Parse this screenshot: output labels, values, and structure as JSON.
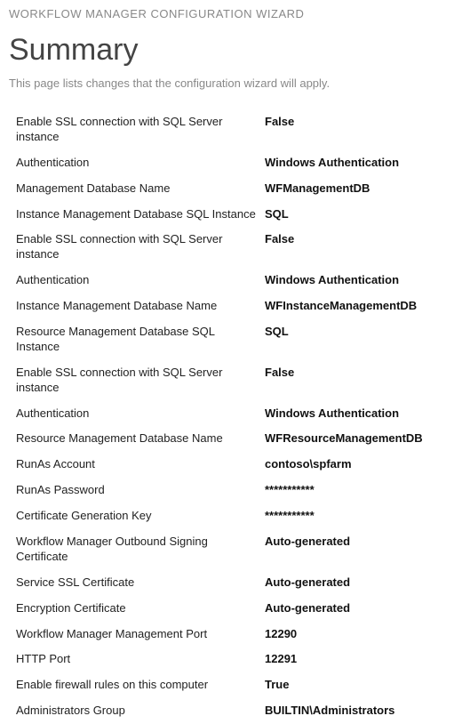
{
  "wizard_header": "WORKFLOW MANAGER CONFIGURATION WIZARD",
  "page_title": "Summary",
  "page_description": "This page lists changes that the configuration wizard will apply.",
  "settings": [
    {
      "label": "Enable SSL connection with SQL Server instance",
      "value": "False"
    },
    {
      "label": "Authentication",
      "value": "Windows Authentication"
    },
    {
      "label": "Management Database Name",
      "value": "WFManagementDB"
    },
    {
      "label": "Instance Management Database SQL Instance",
      "value": "SQL"
    },
    {
      "label": "Enable SSL connection with SQL Server instance",
      "value": "False"
    },
    {
      "label": "Authentication",
      "value": "Windows Authentication"
    },
    {
      "label": "Instance Management Database Name",
      "value": "WFInstanceManagementDB"
    },
    {
      "label": "Resource Management Database SQL Instance",
      "value": "SQL"
    },
    {
      "label": "Enable SSL connection with SQL Server instance",
      "value": "False"
    },
    {
      "label": "Authentication",
      "value": "Windows Authentication"
    },
    {
      "label": "Resource Management Database Name",
      "value": "WFResourceManagementDB"
    },
    {
      "label": "RunAs Account",
      "value": "contoso\\spfarm"
    },
    {
      "label": "RunAs Password",
      "value": "***********"
    },
    {
      "label": "Certificate Generation Key",
      "value": "***********"
    },
    {
      "label": "Workflow Manager Outbound Signing Certificate",
      "value": "Auto-generated"
    },
    {
      "label": "Service SSL Certificate",
      "value": "Auto-generated"
    },
    {
      "label": "Encryption Certificate",
      "value": "Auto-generated"
    },
    {
      "label": "Workflow Manager Management Port",
      "value": "12290"
    },
    {
      "label": "HTTP Port",
      "value": "12291"
    },
    {
      "label": "Enable firewall rules on this computer",
      "value": "True"
    },
    {
      "label": "Administrators Group",
      "value": "BUILTIN\\Administrators"
    }
  ]
}
